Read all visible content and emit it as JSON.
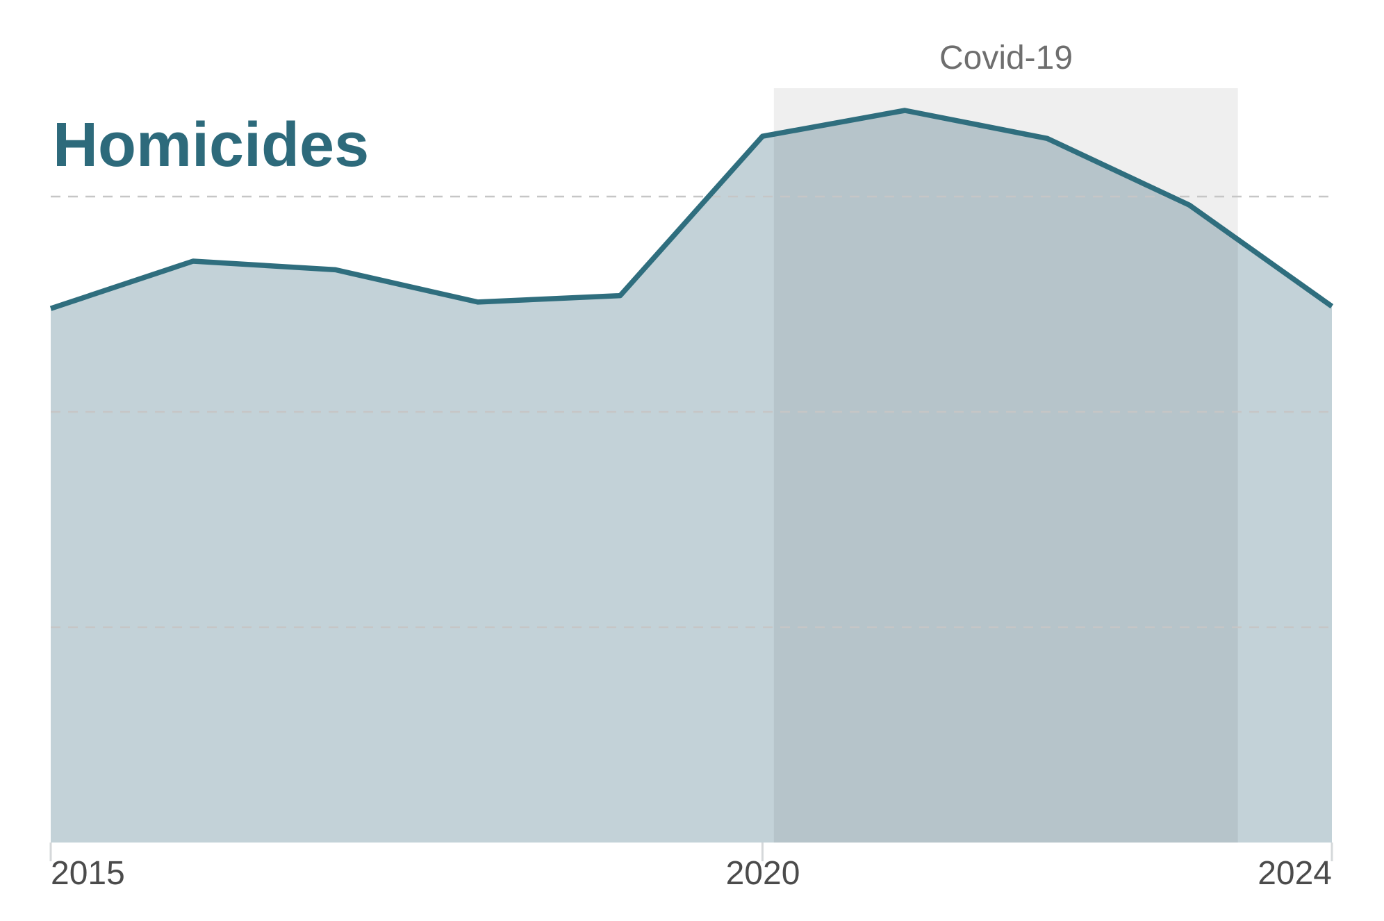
{
  "title": "Homicides",
  "annotation": {
    "label": "Covid-19"
  },
  "x_axis": {
    "tick_labels": [
      "2015",
      "2020",
      "2024"
    ]
  },
  "colors": {
    "accent_title": "#2d6a7b",
    "line": "#2f6e7e",
    "area_fill": "#c3d2d8",
    "covid_band_overlay": "rgba(0,0,0,0.063)",
    "gridline": "#c6c6c6",
    "axis_tick": "#d5d8da",
    "axis_label_text": "#4b4b4b",
    "annotation_text": "#6e6e6e",
    "background": "#ffffff"
  },
  "chart_data": {
    "type": "area",
    "title": "Homicides",
    "xlabel": "",
    "ylabel": "",
    "x": [
      2015,
      2016,
      2017,
      2018,
      2019,
      2020,
      2021,
      2022,
      2023,
      2024
    ],
    "values_gridline_units": [
      2.48,
      2.7,
      2.66,
      2.51,
      2.54,
      3.28,
      3.4,
      3.27,
      2.96,
      2.49
    ],
    "x_tick_years": [
      2015,
      2020,
      2024
    ],
    "x_tick_labels": [
      "2015",
      "2020",
      "2024"
    ],
    "y_axis_labels_visible": false,
    "gridline_units": [
      1,
      2,
      3
    ],
    "ylim_units": [
      0,
      3.5
    ],
    "grid": "horizontal-dashed",
    "legend": "none",
    "covid_region": {
      "label": "Covid-19",
      "x_start": 2020.08,
      "x_end": 2023.34
    }
  }
}
